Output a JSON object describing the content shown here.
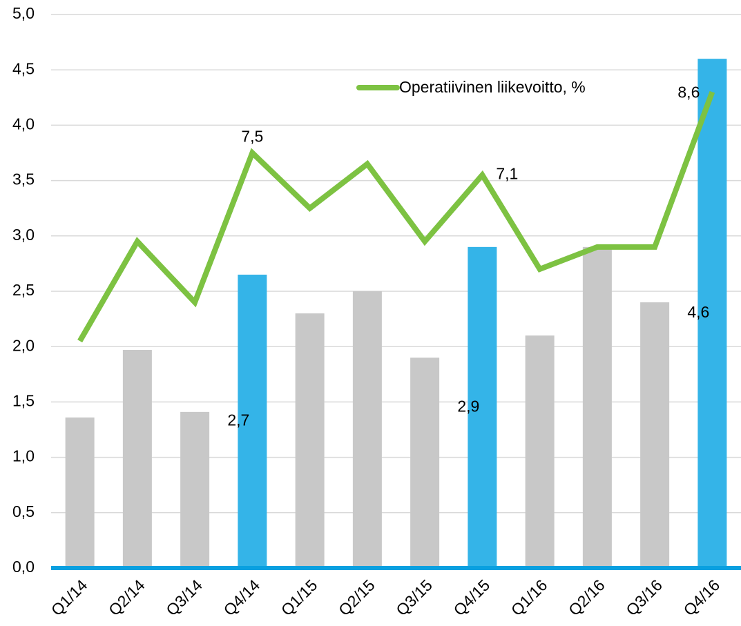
{
  "chart_data": {
    "type": "bar_line",
    "categories": [
      "Q1/14",
      "Q2/14",
      "Q3/14",
      "Q4/14",
      "Q1/15",
      "Q2/15",
      "Q3/15",
      "Q4/15",
      "Q1/16",
      "Q2/16",
      "Q3/16",
      "Q4/16"
    ],
    "bars": {
      "values": [
        1.36,
        1.97,
        1.41,
        2.65,
        2.3,
        2.5,
        1.9,
        2.9,
        2.1,
        2.9,
        2.4,
        4.6
      ],
      "value_labels": [
        null,
        null,
        null,
        "2,7",
        null,
        null,
        null,
        "2,9",
        null,
        null,
        null,
        "4,6"
      ],
      "colors": [
        "#c8c8c8",
        "#c8c8c8",
        "#c8c8c8",
        "#34b4e8",
        "#c8c8c8",
        "#c8c8c8",
        "#c8c8c8",
        "#34b4e8",
        "#c8c8c8",
        "#c8c8c8",
        "#c8c8c8",
        "#34b4e8"
      ]
    },
    "series": [
      {
        "name": "Operatiivinen liikevoitto, %",
        "color": "#7dc242",
        "axis": "y2",
        "values": [
          4.1,
          5.9,
          4.8,
          7.5,
          6.5,
          7.3,
          5.9,
          7.1,
          5.4,
          5.8,
          5.8,
          8.6
        ],
        "value_labels": [
          null,
          null,
          null,
          "7,5",
          null,
          null,
          null,
          "7,1",
          null,
          null,
          null,
          "8,6"
        ]
      }
    ],
    "ylim": [
      0,
      5
    ],
    "yticks": [
      {
        "value": 0,
        "label": "0,0"
      },
      {
        "value": 0.5,
        "label": "0,5"
      },
      {
        "value": 1,
        "label": "1,0"
      },
      {
        "value": 1.5,
        "label": "1,5"
      },
      {
        "value": 2,
        "label": "2,0"
      },
      {
        "value": 2.5,
        "label": "2,5"
      },
      {
        "value": 3,
        "label": "3,0"
      },
      {
        "value": 3.5,
        "label": "3,5"
      },
      {
        "value": 4,
        "label": "4,0"
      },
      {
        "value": 4.5,
        "label": "4,5"
      },
      {
        "value": 5,
        "label": "5,0"
      }
    ],
    "y2lim": [
      0,
      10
    ],
    "grid": true,
    "axis_color": "#0aa0e0"
  }
}
